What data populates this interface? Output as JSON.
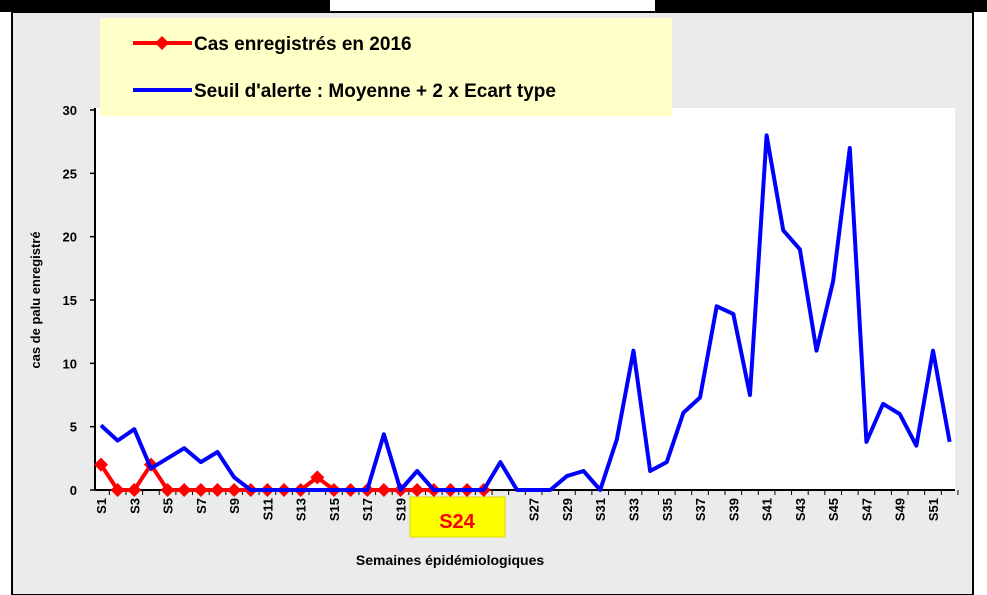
{
  "chart_data": {
    "type": "line",
    "categories": [
      "S1",
      null,
      "S3",
      null,
      "S5",
      null,
      "S7",
      null,
      "S9",
      null,
      "S11",
      null,
      "S13",
      null,
      "S15",
      null,
      "S17",
      null,
      "S19",
      null,
      null,
      null,
      null,
      null,
      null,
      null,
      "S27",
      null,
      "S29",
      null,
      "S31",
      null,
      "S33",
      null,
      "S35",
      null,
      "S37",
      null,
      "S39",
      null,
      "S41",
      null,
      "S43",
      null,
      "S45",
      null,
      "S47",
      null,
      "S49",
      null,
      "S51",
      null
    ],
    "series": [
      {
        "name": "Cas enregistrés en 2016",
        "color": "#ff0000",
        "marker": "diamond",
        "values": [
          2,
          0,
          0,
          2,
          0,
          0,
          0,
          0,
          0,
          0,
          0,
          0,
          0,
          1,
          0,
          0,
          0,
          0,
          0,
          0,
          0,
          0,
          0,
          0,
          null,
          null,
          null,
          null,
          null,
          null,
          null,
          null,
          null,
          null,
          null,
          null,
          null,
          null,
          null,
          null,
          null,
          null,
          null,
          null,
          null,
          null,
          null,
          null,
          null,
          null,
          null,
          null
        ]
      },
      {
        "name": "Seuil d'alerte : Moyenne + 2 x Ecart type",
        "color": "#0000ff",
        "values": [
          5.1,
          3.9,
          4.8,
          1.7,
          2.5,
          3.3,
          2.2,
          3,
          1,
          0,
          0,
          0,
          0,
          0,
          0,
          0,
          0,
          4.4,
          0,
          1.5,
          0,
          0,
          0,
          0,
          2.2,
          0,
          0,
          0,
          1.1,
          1.5,
          0,
          4,
          11,
          1.5,
          2.2,
          6.1,
          7.3,
          14.5,
          13.9,
          7.5,
          28,
          20.5,
          19,
          11,
          16.5,
          27,
          3.8,
          6.8,
          6,
          3.5,
          11,
          3.8
        ]
      }
    ],
    "annotation": "S24",
    "x_label": "Semaines épidémiologiques",
    "y_label": "cas de palu enregistré",
    "ylim": [
      0,
      30
    ],
    "yticks": [
      0,
      5,
      10,
      15,
      20,
      25,
      30
    ]
  }
}
